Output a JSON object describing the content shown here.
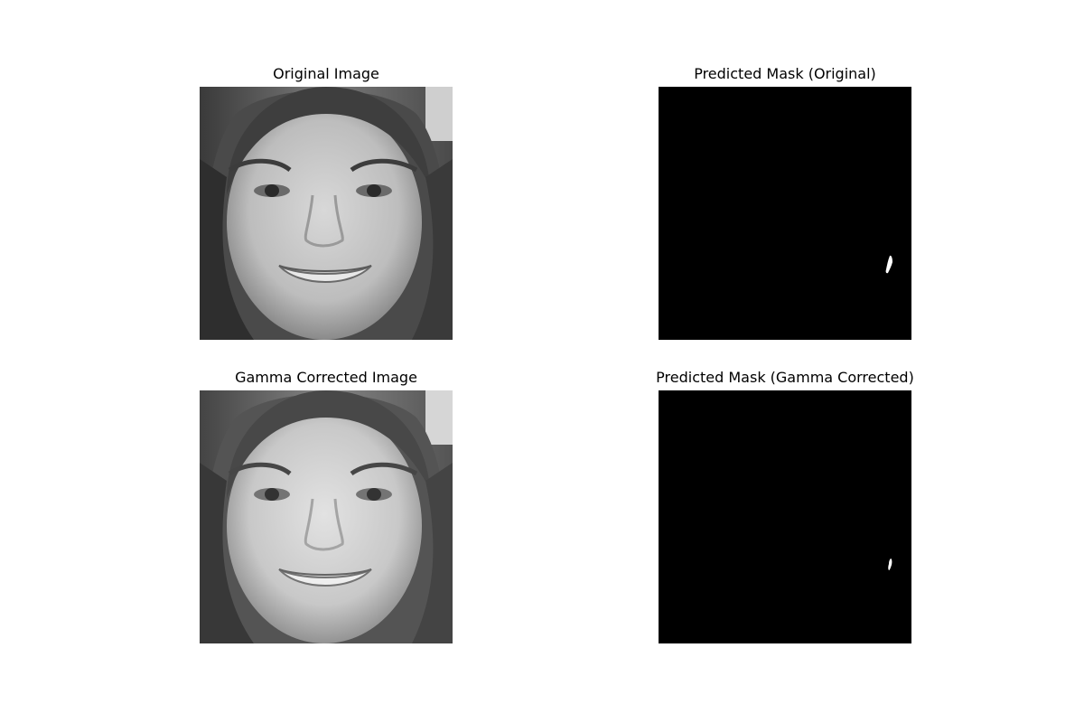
{
  "figure": {
    "background": "#ffffff",
    "panels": [
      {
        "title": "Original Image",
        "kind": "grayscale-face-photo"
      },
      {
        "title": "Predicted Mask (Original)",
        "kind": "binary-mask",
        "mask_fill": "#000000",
        "blob_fill": "#ffffff"
      },
      {
        "title": "Gamma Corrected Image",
        "kind": "grayscale-face-photo"
      },
      {
        "title": "Predicted Mask (Gamma Corrected)",
        "kind": "binary-mask",
        "mask_fill": "#000000",
        "blob_fill": "#ffffff"
      }
    ]
  }
}
